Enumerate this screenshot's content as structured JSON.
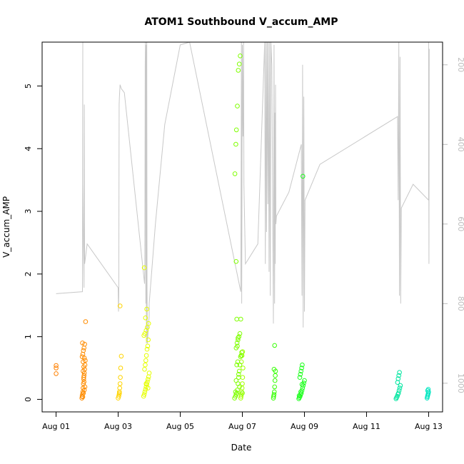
{
  "chart_data": {
    "type": "scatter",
    "title": "ATOM1 Southbound V_accum_AMP",
    "xlabel": "Date",
    "ylabel": "V_accum_AMP",
    "x_unit": "days since Aug 01",
    "xlim": [
      -0.45,
      12.45
    ],
    "ylim": [
      -0.2,
      5.7
    ],
    "x_ticks": [
      {
        "value": 0,
        "label": "Aug 01"
      },
      {
        "value": 2,
        "label": "Aug 03"
      },
      {
        "value": 4,
        "label": "Aug 05"
      },
      {
        "value": 6,
        "label": "Aug 07"
      },
      {
        "value": 8,
        "label": "Aug 09"
      },
      {
        "value": 10,
        "label": "Aug 11"
      },
      {
        "value": 12,
        "label": "Aug 13"
      }
    ],
    "y_ticks": [
      {
        "value": 0,
        "label": "0"
      },
      {
        "value": 1,
        "label": "1"
      },
      {
        "value": 2,
        "label": "2"
      },
      {
        "value": 3,
        "label": "3"
      },
      {
        "value": 4,
        "label": "4"
      },
      {
        "value": 5,
        "label": "5"
      }
    ],
    "right_axis": {
      "lim": [
        1072,
        143
      ],
      "ticks": [
        {
          "value": 200,
          "label": "200"
        },
        {
          "value": 400,
          "label": "400"
        },
        {
          "value": 600,
          "label": "600"
        },
        {
          "value": 800,
          "label": "800"
        },
        {
          "value": 1000,
          "label": "1000"
        }
      ],
      "color": "#bdbdbd"
    },
    "series": [
      {
        "name": "Aug 01",
        "color": "#ff8000",
        "x": [
          0.0,
          0.0,
          0.0
        ],
        "y": [
          0.41,
          0.5,
          0.54
        ]
      },
      {
        "name": "Aug 02",
        "color": "#ff8c00",
        "x": [
          0.83,
          0.84,
          0.85,
          0.86,
          0.87,
          0.88,
          0.89,
          0.9,
          0.91,
          0.92,
          0.93,
          0.94,
          0.84,
          0.86,
          0.88,
          0.9,
          0.92,
          0.85,
          0.87,
          0.89,
          0.91,
          0.86,
          0.88,
          0.9,
          0.87,
          0.89,
          0.91,
          0.93,
          0.95
        ],
        "y": [
          0.02,
          0.05,
          0.08,
          0.12,
          0.18,
          0.25,
          0.32,
          0.38,
          0.42,
          0.48,
          0.55,
          0.62,
          0.68,
          0.72,
          0.78,
          0.82,
          0.88,
          0.9,
          0.6,
          0.35,
          0.15,
          0.04,
          0.1,
          0.28,
          0.45,
          0.52,
          0.66,
          0.2,
          1.24
        ]
      },
      {
        "name": "Aug 03",
        "color": "#ffd400",
        "x": [
          2.0,
          2.02,
          2.03,
          2.04,
          2.05,
          2.06,
          2.07,
          2.08,
          2.1,
          2.04,
          2.06
        ],
        "y": [
          0.02,
          0.05,
          0.08,
          0.12,
          0.18,
          0.25,
          0.35,
          0.5,
          0.69,
          0.1,
          1.49
        ]
      },
      {
        "name": "Aug 04",
        "color": "#e6ff00",
        "x": [
          2.82,
          2.84,
          2.86,
          2.88,
          2.9,
          2.92,
          2.94,
          2.96,
          2.98,
          3.0,
          2.85,
          2.87,
          2.89,
          2.91,
          2.93,
          2.95,
          2.97,
          2.83,
          2.86,
          2.9,
          2.94,
          2.98,
          2.88,
          2.92,
          2.96,
          2.84,
          2.9
        ],
        "y": [
          0.05,
          0.08,
          0.12,
          0.16,
          0.2,
          0.24,
          0.28,
          0.32,
          0.36,
          0.42,
          0.48,
          0.55,
          0.62,
          0.7,
          0.8,
          0.85,
          0.95,
          1.02,
          1.05,
          1.1,
          1.15,
          1.21,
          1.3,
          1.44,
          0.18,
          2.1,
          0.25
        ]
      },
      {
        "name": "Aug 06",
        "color": "#a6ff00",
        "x": [
          5.95,
          5.96,
          5.97,
          5.98,
          5.99,
          6.0,
          6.01,
          6.02,
          5.97,
          5.99,
          6.01
        ],
        "y": [
          0.02,
          0.05,
          0.08,
          0.12,
          0.18,
          0.25,
          0.35,
          0.5,
          0.6,
          0.7,
          0.76
        ]
      },
      {
        "name": "Aug 07",
        "color": "#7fff00",
        "x": [
          5.75,
          5.78,
          5.8,
          5.82,
          5.84,
          5.86,
          5.88,
          5.9,
          5.92,
          5.94,
          5.96,
          5.98,
          5.8,
          5.83,
          5.86,
          5.89,
          5.92,
          5.95,
          5.82,
          5.85,
          5.88,
          5.91,
          5.76,
          5.79,
          5.81,
          5.84,
          5.87,
          5.9,
          5.93,
          5.78,
          5.8,
          5.82,
          5.84,
          5.86,
          5.8,
          6.0
        ],
        "y": [
          0.02,
          0.05,
          0.08,
          0.1,
          0.15,
          0.25,
          0.35,
          0.45,
          0.55,
          0.68,
          0.7,
          0.75,
          0.82,
          0.9,
          0.95,
          1.0,
          1.05,
          1.28,
          1.28,
          0.6,
          0.4,
          0.2,
          3.6,
          4.07,
          4.3,
          4.68,
          5.25,
          5.35,
          5.48,
          0.12,
          0.3,
          0.55,
          0.85,
          0.98,
          2.2,
          0.1
        ]
      },
      {
        "name": "Aug 08",
        "color": "#33ff00",
        "x": [
          7.0,
          7.01,
          7.02,
          7.03,
          7.04,
          7.05,
          7.06,
          7.07,
          7.02,
          7.04
        ],
        "y": [
          0.02,
          0.05,
          0.08,
          0.12,
          0.2,
          0.3,
          0.38,
          0.45,
          0.48,
          0.86
        ]
      },
      {
        "name": "Aug 09",
        "color": "#1aff1a",
        "x": [
          7.82,
          7.84,
          7.86,
          7.88,
          7.9,
          7.92,
          7.94,
          7.96,
          7.98,
          8.0,
          7.85,
          7.87,
          7.89,
          7.91,
          7.93,
          7.95,
          7.83,
          7.88,
          7.92
        ],
        "y": [
          0.01,
          0.03,
          0.05,
          0.08,
          0.1,
          0.14,
          0.18,
          0.22,
          0.26,
          0.3,
          0.35,
          0.4,
          0.45,
          0.5,
          0.55,
          3.56,
          0.06,
          0.12,
          0.24
        ]
      },
      {
        "name": "Aug 12",
        "color": "#00e6a0",
        "x": [
          10.95,
          10.97,
          10.99,
          11.01,
          11.03,
          11.05,
          11.07,
          11.09,
          11.0,
          11.02,
          11.04,
          11.06
        ],
        "y": [
          0.01,
          0.03,
          0.05,
          0.08,
          0.1,
          0.14,
          0.18,
          0.22,
          0.27,
          0.33,
          0.38,
          0.43
        ]
      },
      {
        "name": "Aug 13",
        "color": "#00e6c0",
        "x": [
          11.95,
          11.96,
          11.97,
          11.98,
          11.99,
          12.0,
          11.97,
          11.99
        ],
        "y": [
          0.02,
          0.04,
          0.06,
          0.08,
          0.1,
          0.12,
          0.14,
          0.16
        ]
      }
    ],
    "overlay_line": {
      "name": "right-axis trace",
      "color": "#c8c8c8",
      "x": [
        0.0,
        0.85,
        0.86,
        0.86,
        0.88,
        0.89,
        0.9,
        0.91,
        0.92,
        1.0,
        2.0,
        2.01,
        2.02,
        2.03,
        2.04,
        2.06,
        2.1,
        2.2,
        2.85,
        2.86,
        2.87,
        2.88,
        2.89,
        2.9,
        2.91,
        2.92,
        2.93,
        2.94,
        3.0,
        3.0,
        3.2,
        3.5,
        4.0,
        4.3,
        5.95,
        5.96,
        5.97,
        5.98,
        6.0,
        6.02,
        6.04,
        6.05,
        6.1,
        6.5,
        6.72,
        6.74,
        6.76,
        6.78,
        6.8,
        6.82,
        6.84,
        6.86,
        6.88,
        6.9,
        6.92,
        6.95,
        7.0,
        7.02,
        7.04,
        7.05,
        7.06,
        7.07,
        7.08,
        7.1,
        7.5,
        7.9,
        7.92,
        7.94,
        7.96,
        7.98,
        8.0,
        8.02,
        8.5,
        11.0,
        11.02,
        11.04,
        11.06,
        11.08,
        11.1,
        11.12,
        11.5,
        12.0,
        12.0,
        12.01,
        12.02
      ],
      "y": [
        775,
        770,
        130,
        500,
        650,
        700,
        760,
        300,
        700,
        650,
        760,
        820,
        780,
        300,
        280,
        250,
        260,
        270,
        750,
        700,
        200,
        100,
        800,
        150,
        900,
        120,
        750,
        900,
        830,
        800,
        600,
        350,
        150,
        120,
        770,
        450,
        100,
        800,
        150,
        380,
        120,
        500,
        700,
        650,
        100,
        700,
        50,
        620,
        80,
        550,
        120,
        720,
        60,
        780,
        100,
        200,
        850,
        150,
        800,
        320,
        700,
        250,
        600,
        580,
        520,
        400,
        780,
        200,
        860,
        280,
        820,
        540,
        450,
        330,
        540,
        100,
        780,
        180,
        800,
        560,
        500,
        540,
        100,
        700,
        160
      ]
    }
  }
}
